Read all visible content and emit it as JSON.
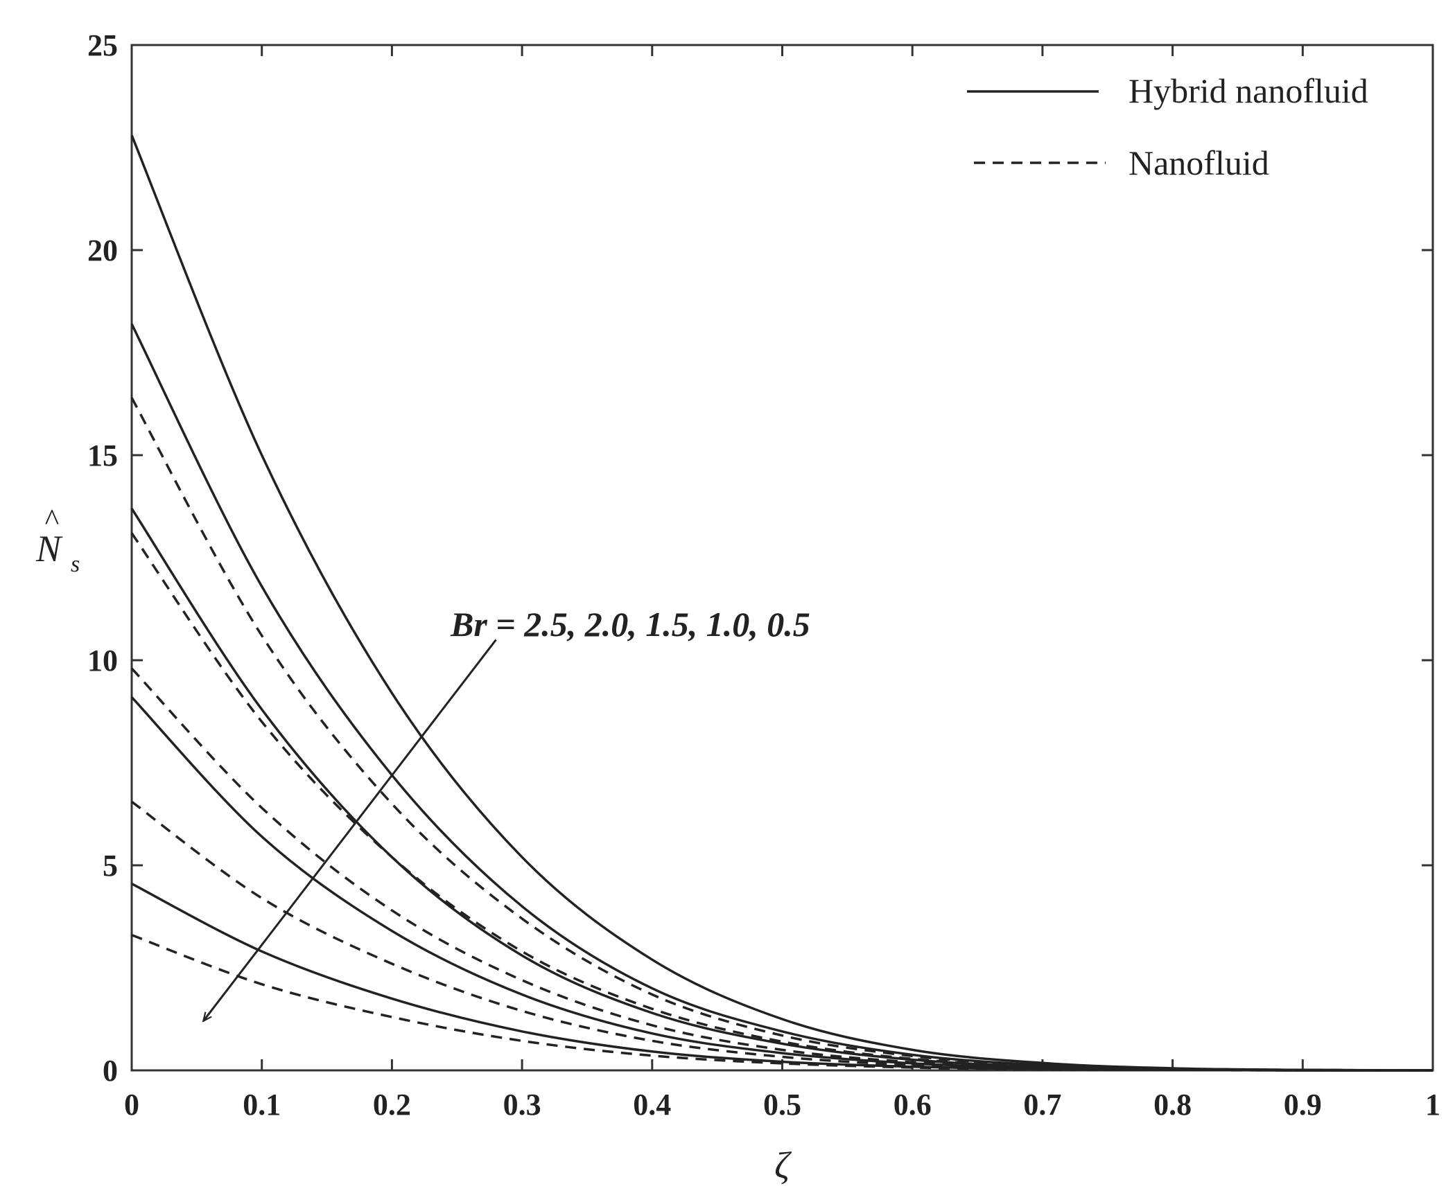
{
  "chart_data": {
    "type": "line",
    "xlabel": "ζ",
    "ylabel_main": "N",
    "ylabel_sub": "s",
    "ylabel_hat": "^",
    "xlim": [
      0,
      1
    ],
    "ylim": [
      0,
      25
    ],
    "xticks": [
      "0",
      "0.1",
      "0.2",
      "0.3",
      "0.4",
      "0.5",
      "0.6",
      "0.7",
      "0.8",
      "0.9",
      "1"
    ],
    "yticks": [
      "0",
      "5",
      "10",
      "15",
      "20",
      "25"
    ],
    "grid": false,
    "legend_position": "top-right",
    "legend": [
      {
        "label": "Hybrid nanofluid",
        "style": "solid"
      },
      {
        "label": "Nanofluid",
        "style": "dashed"
      }
    ],
    "annotation": {
      "text": "Br = 2.5, 2.0, 1.5, 1.0, 0.5",
      "arrow_from": [
        0.28,
        10.5
      ],
      "arrow_to": [
        0.055,
        1.2
      ]
    },
    "x": [
      0,
      0.1,
      0.2,
      0.3,
      0.4,
      0.5,
      0.6,
      0.7,
      0.8,
      0.9,
      1
    ],
    "series": [
      {
        "group": "Hybrid nanofluid",
        "Br": 2.5,
        "style": "solid",
        "values": [
          22.8,
          15.0,
          9.2,
          5.2,
          2.7,
          1.25,
          0.5,
          0.18,
          0.05,
          0.01,
          0
        ]
      },
      {
        "group": "Hybrid nanofluid",
        "Br": 2.0,
        "style": "solid",
        "values": [
          18.2,
          11.8,
          7.2,
          4.0,
          2.0,
          0.95,
          0.38,
          0.13,
          0.04,
          0.01,
          0
        ]
      },
      {
        "group": "Hybrid nanofluid",
        "Br": 1.5,
        "style": "solid",
        "values": [
          13.7,
          8.8,
          5.2,
          2.8,
          1.4,
          0.65,
          0.26,
          0.09,
          0.03,
          0.01,
          0
        ]
      },
      {
        "group": "Hybrid nanofluid",
        "Br": 1.0,
        "style": "solid",
        "values": [
          9.1,
          5.7,
          3.4,
          1.85,
          0.9,
          0.42,
          0.17,
          0.06,
          0.02,
          0,
          0
        ]
      },
      {
        "group": "Hybrid nanofluid",
        "Br": 0.5,
        "style": "solid",
        "values": [
          4.55,
          2.9,
          1.75,
          0.95,
          0.46,
          0.21,
          0.09,
          0.03,
          0.01,
          0,
          0
        ]
      },
      {
        "group": "Nanofluid",
        "Br": 2.5,
        "style": "dashed",
        "values": [
          16.4,
          10.6,
          6.5,
          3.7,
          1.85,
          0.85,
          0.35,
          0.12,
          0.04,
          0.01,
          0
        ]
      },
      {
        "group": "Nanofluid",
        "Br": 2.0,
        "style": "dashed",
        "values": [
          13.1,
          8.5,
          5.2,
          2.9,
          1.5,
          0.7,
          0.28,
          0.1,
          0.03,
          0.01,
          0
        ]
      },
      {
        "group": "Nanofluid",
        "Br": 1.5,
        "style": "dashed",
        "values": [
          9.8,
          6.4,
          3.9,
          2.2,
          1.1,
          0.5,
          0.2,
          0.07,
          0.02,
          0,
          0
        ]
      },
      {
        "group": "Nanofluid",
        "Br": 1.0,
        "style": "dashed",
        "values": [
          6.55,
          4.2,
          2.6,
          1.45,
          0.72,
          0.33,
          0.13,
          0.05,
          0.01,
          0,
          0
        ]
      },
      {
        "group": "Nanofluid",
        "Br": 0.5,
        "style": "dashed",
        "values": [
          3.3,
          2.1,
          1.3,
          0.72,
          0.36,
          0.17,
          0.07,
          0.02,
          0.01,
          0,
          0
        ]
      }
    ]
  }
}
